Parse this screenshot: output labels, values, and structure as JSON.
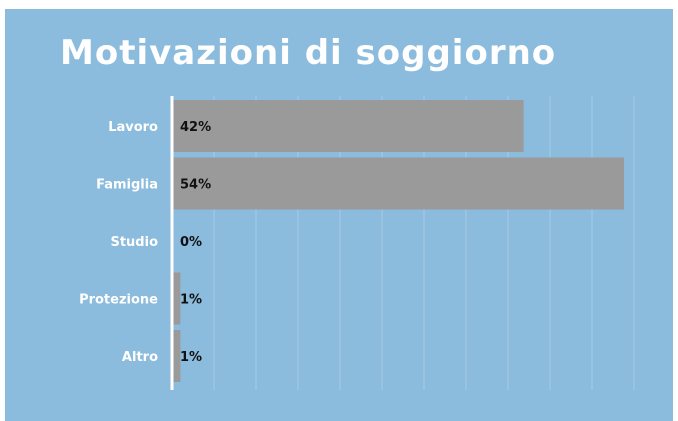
{
  "chart_data": {
    "type": "bar",
    "orientation": "horizontal",
    "title": "Motivazioni di soggiorno",
    "categories": [
      "Lavoro",
      "Famiglia",
      "Studio",
      "Protezione",
      "Altro"
    ],
    "values": [
      42,
      54,
      0,
      1,
      1
    ],
    "value_labels": [
      "42%",
      "54%",
      "0%",
      "1%",
      "1%"
    ],
    "xlim": [
      0,
      54
    ],
    "grid": true,
    "legend": "none",
    "colors": {
      "background": "#8bbbdd",
      "bar": "#9a9a9a",
      "axis": "#ffffff",
      "title": "#ffffff",
      "category_label": "#ffffff",
      "value_label": "#111111",
      "grid": "#a7cbe5"
    }
  }
}
